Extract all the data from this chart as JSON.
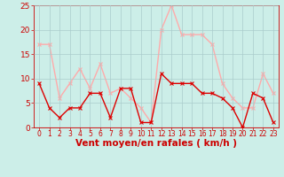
{
  "hours": [
    0,
    1,
    2,
    3,
    4,
    5,
    6,
    7,
    8,
    9,
    10,
    11,
    12,
    13,
    14,
    15,
    16,
    17,
    18,
    19,
    20,
    21,
    22,
    23
  ],
  "wind_avg": [
    9,
    4,
    2,
    4,
    4,
    7,
    7,
    2,
    8,
    8,
    1,
    1,
    11,
    9,
    9,
    9,
    7,
    7,
    6,
    4,
    0,
    7,
    6,
    1
  ],
  "wind_gust": [
    17,
    17,
    6,
    9,
    12,
    8,
    13,
    7,
    8,
    6,
    4,
    1,
    20,
    25,
    19,
    19,
    19,
    17,
    9,
    6,
    4,
    4,
    11,
    7
  ],
  "color_avg": "#dd0000",
  "color_gust": "#ffaaaa",
  "bg_color": "#cceee8",
  "grid_color": "#aacccc",
  "xlabel": "Vent moyen/en rafales ( km/h )",
  "xlabel_color": "#cc0000",
  "tick_color": "#cc0000",
  "spine_color": "#cc0000",
  "ylim": [
    0,
    25
  ],
  "yticks": [
    0,
    5,
    10,
    15,
    20,
    25
  ],
  "marker_size": 2.5,
  "linewidth": 1.0,
  "xlabel_fontsize": 7.5,
  "tick_fontsize": 5.5,
  "ytick_fontsize": 6.5
}
